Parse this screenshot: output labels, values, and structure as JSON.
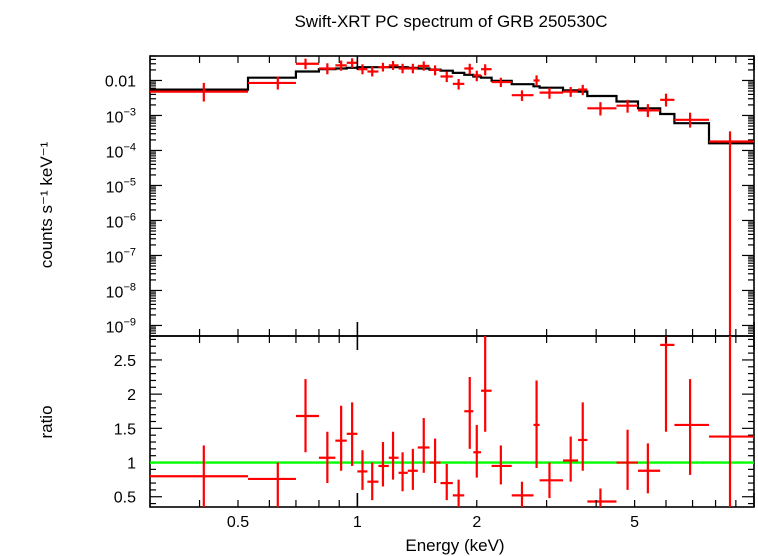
{
  "chart_data": {
    "type": "scatter",
    "title": "Swift-XRT PC spectrum of GRB 250530C",
    "xlabel": "Energy (keV)",
    "x_scale": "log",
    "xlim": [
      0.3,
      10.0
    ],
    "x_ticks": [
      {
        "value": 0.5,
        "label": "0.5"
      },
      {
        "value": 1,
        "label": "1"
      },
      {
        "value": 2,
        "label": "2"
      },
      {
        "value": 5,
        "label": "5"
      }
    ],
    "colors": {
      "data": "#ff0000",
      "model": "#000000",
      "unity": "#00ff00",
      "axes": "#000000"
    },
    "panels": [
      {
        "name": "spectrum",
        "ylabel": "counts s⁻¹ keV⁻¹",
        "y_scale": "log",
        "ylim": [
          5e-10,
          0.05
        ],
        "y_ticks": [
          {
            "value": 0.01,
            "label": "0.01"
          },
          {
            "value": 0.001,
            "base": "10",
            "exp": "−3"
          },
          {
            "value": 0.0001,
            "base": "10",
            "exp": "−4"
          },
          {
            "value": 1e-05,
            "base": "10",
            "exp": "−5"
          },
          {
            "value": 1e-06,
            "base": "10",
            "exp": "−6"
          },
          {
            "value": 1e-07,
            "base": "10",
            "exp": "−7"
          },
          {
            "value": 1e-08,
            "base": "10",
            "exp": "−8"
          },
          {
            "value": 1e-09,
            "base": "10",
            "exp": "−9"
          }
        ],
        "data": [
          {
            "xlo": 0.3,
            "xhi": 0.53,
            "x": 0.41,
            "y": 0.0048,
            "ylo": 0.0025,
            "yhi": 0.0085
          },
          {
            "xlo": 0.53,
            "xhi": 0.7,
            "x": 0.63,
            "y": 0.0085,
            "ylo": 0.0055,
            "yhi": 0.013
          },
          {
            "xlo": 0.7,
            "xhi": 0.8,
            "x": 0.74,
            "y": 0.03,
            "ylo": 0.021,
            "yhi": 0.042
          },
          {
            "xlo": 0.8,
            "xhi": 0.88,
            "x": 0.84,
            "y": 0.022,
            "ylo": 0.015,
            "yhi": 0.031
          },
          {
            "xlo": 0.88,
            "xhi": 0.94,
            "x": 0.91,
            "y": 0.027,
            "ylo": 0.019,
            "yhi": 0.037
          },
          {
            "xlo": 0.94,
            "xhi": 1.0,
            "x": 0.97,
            "y": 0.032,
            "ylo": 0.023,
            "yhi": 0.043
          },
          {
            "xlo": 1.0,
            "xhi": 1.06,
            "x": 1.03,
            "y": 0.021,
            "ylo": 0.015,
            "yhi": 0.029
          },
          {
            "xlo": 1.06,
            "xhi": 1.13,
            "x": 1.09,
            "y": 0.018,
            "ylo": 0.013,
            "yhi": 0.025
          },
          {
            "xlo": 1.13,
            "xhi": 1.2,
            "x": 1.16,
            "y": 0.024,
            "ylo": 0.018,
            "yhi": 0.032
          },
          {
            "xlo": 1.2,
            "xhi": 1.27,
            "x": 1.23,
            "y": 0.027,
            "ylo": 0.02,
            "yhi": 0.036
          },
          {
            "xlo": 1.27,
            "xhi": 1.34,
            "x": 1.3,
            "y": 0.022,
            "ylo": 0.016,
            "yhi": 0.03
          },
          {
            "xlo": 1.34,
            "xhi": 1.42,
            "x": 1.38,
            "y": 0.022,
            "ylo": 0.016,
            "yhi": 0.03
          },
          {
            "xlo": 1.42,
            "xhi": 1.52,
            "x": 1.47,
            "y": 0.026,
            "ylo": 0.019,
            "yhi": 0.035
          },
          {
            "xlo": 1.52,
            "xhi": 1.62,
            "x": 1.57,
            "y": 0.02,
            "ylo": 0.014,
            "yhi": 0.027
          },
          {
            "xlo": 1.62,
            "xhi": 1.74,
            "x": 1.68,
            "y": 0.013,
            "ylo": 0.009,
            "yhi": 0.018
          },
          {
            "xlo": 1.74,
            "xhi": 1.86,
            "x": 1.8,
            "y": 0.008,
            "ylo": 0.0055,
            "yhi": 0.011
          },
          {
            "xlo": 1.86,
            "xhi": 1.96,
            "x": 1.92,
            "y": 0.022,
            "ylo": 0.015,
            "yhi": 0.03
          },
          {
            "xlo": 1.96,
            "xhi": 2.05,
            "x": 2.0,
            "y": 0.014,
            "ylo": 0.0095,
            "yhi": 0.019
          },
          {
            "xlo": 2.05,
            "xhi": 2.18,
            "x": 2.1,
            "y": 0.021,
            "ylo": 0.014,
            "yhi": 0.029
          },
          {
            "xlo": 2.18,
            "xhi": 2.45,
            "x": 2.3,
            "y": 0.009,
            "ylo": 0.0065,
            "yhi": 0.012
          },
          {
            "xlo": 2.45,
            "xhi": 2.78,
            "x": 2.6,
            "y": 0.0038,
            "ylo": 0.0026,
            "yhi": 0.0052
          },
          {
            "xlo": 2.78,
            "xhi": 2.88,
            "x": 2.83,
            "y": 0.01,
            "ylo": 0.007,
            "yhi": 0.014
          },
          {
            "xlo": 2.88,
            "xhi": 3.3,
            "x": 3.05,
            "y": 0.0045,
            "ylo": 0.003,
            "yhi": 0.0062
          },
          {
            "xlo": 3.3,
            "xhi": 3.6,
            "x": 3.45,
            "y": 0.0048,
            "ylo": 0.0034,
            "yhi": 0.0065
          },
          {
            "xlo": 3.6,
            "xhi": 3.8,
            "x": 3.7,
            "y": 0.0055,
            "ylo": 0.0038,
            "yhi": 0.0075
          },
          {
            "xlo": 3.8,
            "xhi": 4.5,
            "x": 4.1,
            "y": 0.0016,
            "ylo": 0.001,
            "yhi": 0.0024
          },
          {
            "xlo": 4.5,
            "xhi": 5.1,
            "x": 4.8,
            "y": 0.0019,
            "ylo": 0.0012,
            "yhi": 0.0028
          },
          {
            "xlo": 5.1,
            "xhi": 5.8,
            "x": 5.4,
            "y": 0.0014,
            "ylo": 0.0009,
            "yhi": 0.0021
          },
          {
            "xlo": 5.8,
            "xhi": 6.3,
            "x": 6.0,
            "y": 0.0028,
            "ylo": 0.0018,
            "yhi": 0.0042
          },
          {
            "xlo": 6.3,
            "xhi": 7.7,
            "x": 6.9,
            "y": 0.00075,
            "ylo": 0.00045,
            "yhi": 0.0012
          },
          {
            "xlo": 7.7,
            "xhi": 10.0,
            "x": 8.7,
            "y": 0.00018,
            "ylo": 5e-10,
            "yhi": 0.00035
          }
        ],
        "model": [
          {
            "xlo": 0.3,
            "xhi": 0.53,
            "y": 0.0055
          },
          {
            "xlo": 0.53,
            "xhi": 0.7,
            "y": 0.012
          },
          {
            "xlo": 0.7,
            "xhi": 0.8,
            "y": 0.018
          },
          {
            "xlo": 0.8,
            "xhi": 0.88,
            "y": 0.021
          },
          {
            "xlo": 0.88,
            "xhi": 0.94,
            "y": 0.022
          },
          {
            "xlo": 0.94,
            "xhi": 1.0,
            "y": 0.023
          },
          {
            "xlo": 1.0,
            "xhi": 1.06,
            "y": 0.024
          },
          {
            "xlo": 1.06,
            "xhi": 1.13,
            "y": 0.024
          },
          {
            "xlo": 1.13,
            "xhi": 1.2,
            "y": 0.024
          },
          {
            "xlo": 1.2,
            "xhi": 1.27,
            "y": 0.024
          },
          {
            "xlo": 1.27,
            "xhi": 1.34,
            "y": 0.024
          },
          {
            "xlo": 1.34,
            "xhi": 1.42,
            "y": 0.023
          },
          {
            "xlo": 1.42,
            "xhi": 1.52,
            "y": 0.022
          },
          {
            "xlo": 1.52,
            "xhi": 1.62,
            "y": 0.0205
          },
          {
            "xlo": 1.62,
            "xhi": 1.74,
            "y": 0.019
          },
          {
            "xlo": 1.74,
            "xhi": 1.86,
            "y": 0.0165
          },
          {
            "xlo": 1.86,
            "xhi": 1.96,
            "y": 0.0145
          },
          {
            "xlo": 1.96,
            "xhi": 2.05,
            "y": 0.013
          },
          {
            "xlo": 2.05,
            "xhi": 2.18,
            "y": 0.012
          },
          {
            "xlo": 2.18,
            "xhi": 2.45,
            "y": 0.0098
          },
          {
            "xlo": 2.45,
            "xhi": 2.78,
            "y": 0.0078
          },
          {
            "xlo": 2.78,
            "xhi": 2.88,
            "y": 0.0068
          },
          {
            "xlo": 2.88,
            "xhi": 3.3,
            "y": 0.0062
          },
          {
            "xlo": 3.3,
            "xhi": 3.6,
            "y": 0.0052
          },
          {
            "xlo": 3.6,
            "xhi": 3.8,
            "y": 0.0048
          },
          {
            "xlo": 3.8,
            "xhi": 4.5,
            "y": 0.0036
          },
          {
            "xlo": 4.5,
            "xhi": 5.1,
            "y": 0.0025
          },
          {
            "xlo": 5.1,
            "xhi": 5.8,
            "y": 0.0016
          },
          {
            "xlo": 5.8,
            "xhi": 6.3,
            "y": 0.0011
          },
          {
            "xlo": 6.3,
            "xhi": 7.7,
            "y": 0.0006
          },
          {
            "xlo": 7.7,
            "xhi": 10.0,
            "y": 0.00016
          }
        ]
      },
      {
        "name": "ratio",
        "ylabel": "ratio",
        "y_scale": "linear",
        "ylim": [
          0.35,
          2.85
        ],
        "y_ticks": [
          {
            "value": 0.5,
            "label": "0.5"
          },
          {
            "value": 1,
            "label": "1"
          },
          {
            "value": 1.5,
            "label": "1.5"
          },
          {
            "value": 2,
            "label": "2"
          },
          {
            "value": 2.5,
            "label": "2.5"
          }
        ],
        "unity": 1,
        "data": [
          {
            "xlo": 0.3,
            "xhi": 0.53,
            "x": 0.41,
            "y": 0.8,
            "ylo": 0.35,
            "yhi": 1.25
          },
          {
            "xlo": 0.53,
            "xhi": 0.7,
            "x": 0.63,
            "y": 0.76,
            "ylo": 0.35,
            "yhi": 1.0
          },
          {
            "xlo": 0.7,
            "xhi": 0.8,
            "x": 0.74,
            "y": 1.68,
            "ylo": 1.15,
            "yhi": 2.22
          },
          {
            "xlo": 0.8,
            "xhi": 0.88,
            "x": 0.84,
            "y": 1.07,
            "ylo": 0.7,
            "yhi": 1.45
          },
          {
            "xlo": 0.88,
            "xhi": 0.94,
            "x": 0.91,
            "y": 1.32,
            "ylo": 0.88,
            "yhi": 1.83
          },
          {
            "xlo": 0.94,
            "xhi": 1.0,
            "x": 0.97,
            "y": 1.42,
            "ylo": 0.95,
            "yhi": 1.88
          },
          {
            "xlo": 1.0,
            "xhi": 1.06,
            "x": 1.03,
            "y": 0.87,
            "ylo": 0.6,
            "yhi": 1.18
          },
          {
            "xlo": 1.06,
            "xhi": 1.13,
            "x": 1.09,
            "y": 0.72,
            "ylo": 0.45,
            "yhi": 1.0
          },
          {
            "xlo": 1.13,
            "xhi": 1.2,
            "x": 1.16,
            "y": 0.95,
            "ylo": 0.65,
            "yhi": 1.3
          },
          {
            "xlo": 1.2,
            "xhi": 1.27,
            "x": 1.23,
            "y": 1.07,
            "ylo": 0.75,
            "yhi": 1.45
          },
          {
            "xlo": 1.27,
            "xhi": 1.34,
            "x": 1.3,
            "y": 0.85,
            "ylo": 0.58,
            "yhi": 1.15
          },
          {
            "xlo": 1.34,
            "xhi": 1.42,
            "x": 1.38,
            "y": 0.88,
            "ylo": 0.6,
            "yhi": 1.2
          },
          {
            "xlo": 1.42,
            "xhi": 1.52,
            "x": 1.47,
            "y": 1.22,
            "ylo": 0.85,
            "yhi": 1.65
          },
          {
            "xlo": 1.52,
            "xhi": 1.62,
            "x": 1.57,
            "y": 1.0,
            "ylo": 0.7,
            "yhi": 1.35
          },
          {
            "xlo": 1.62,
            "xhi": 1.74,
            "x": 1.68,
            "y": 0.7,
            "ylo": 0.45,
            "yhi": 0.98
          },
          {
            "xlo": 1.74,
            "xhi": 1.86,
            "x": 1.8,
            "y": 0.52,
            "ylo": 0.35,
            "yhi": 0.75
          },
          {
            "xlo": 1.86,
            "xhi": 1.96,
            "x": 1.92,
            "y": 1.75,
            "ylo": 1.2,
            "yhi": 2.25
          },
          {
            "xlo": 1.96,
            "xhi": 2.05,
            "x": 2.0,
            "y": 1.15,
            "ylo": 0.78,
            "yhi": 1.55
          },
          {
            "xlo": 2.05,
            "xhi": 2.18,
            "x": 2.1,
            "y": 2.05,
            "ylo": 1.45,
            "yhi": 2.85
          },
          {
            "xlo": 2.18,
            "xhi": 2.45,
            "x": 2.3,
            "y": 0.95,
            "ylo": 0.68,
            "yhi": 1.25
          },
          {
            "xlo": 2.45,
            "xhi": 2.78,
            "x": 2.6,
            "y": 0.52,
            "ylo": 0.35,
            "yhi": 0.72
          },
          {
            "xlo": 2.78,
            "xhi": 2.88,
            "x": 2.83,
            "y": 1.55,
            "ylo": 0.92,
            "yhi": 2.2
          },
          {
            "xlo": 2.88,
            "xhi": 3.3,
            "x": 3.05,
            "y": 0.74,
            "ylo": 0.48,
            "yhi": 1.0
          },
          {
            "xlo": 3.3,
            "xhi": 3.6,
            "x": 3.45,
            "y": 1.03,
            "ylo": 0.72,
            "yhi": 1.38
          },
          {
            "xlo": 3.6,
            "xhi": 3.8,
            "x": 3.7,
            "y": 1.33,
            "ylo": 0.88,
            "yhi": 1.88
          },
          {
            "xlo": 3.8,
            "xhi": 4.5,
            "x": 4.1,
            "y": 0.43,
            "ylo": 0.35,
            "yhi": 0.62
          },
          {
            "xlo": 4.5,
            "xhi": 5.1,
            "x": 4.8,
            "y": 1.0,
            "ylo": 0.6,
            "yhi": 1.48
          },
          {
            "xlo": 5.1,
            "xhi": 5.8,
            "x": 5.4,
            "y": 0.88,
            "ylo": 0.55,
            "yhi": 1.28
          },
          {
            "xlo": 5.8,
            "xhi": 6.3,
            "x": 6.0,
            "y": 2.72,
            "ylo": 1.45,
            "yhi": 2.85
          },
          {
            "xlo": 6.3,
            "xhi": 7.7,
            "x": 6.9,
            "y": 1.55,
            "ylo": 0.82,
            "yhi": 2.22
          },
          {
            "xlo": 7.7,
            "xhi": 10.0,
            "x": 8.7,
            "y": 1.38,
            "ylo": 0.35,
            "yhi": 2.85
          }
        ]
      }
    ]
  }
}
